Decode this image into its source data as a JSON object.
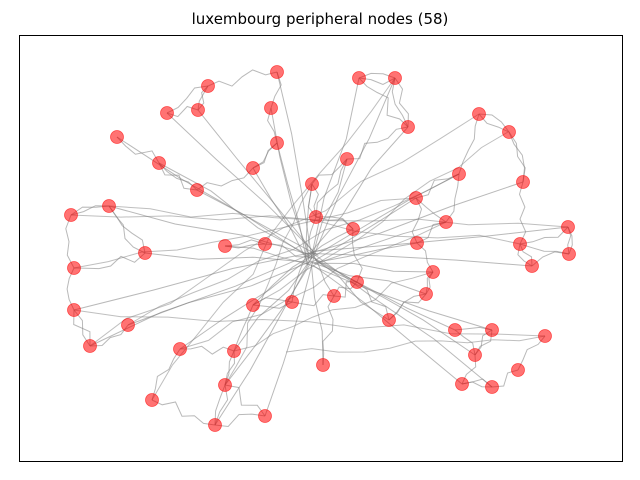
{
  "title": "luxembourg peripheral nodes (58)",
  "colors": {
    "node_fill": "#ff0000",
    "node_stroke": "#ff0000",
    "edge": "#808080",
    "frame": "#000000"
  },
  "chart_data": {
    "type": "network-graph",
    "title": "luxembourg peripheral nodes (58)",
    "node_count": 58,
    "axes_visible": false,
    "grid": false,
    "legend": "none"
  }
}
